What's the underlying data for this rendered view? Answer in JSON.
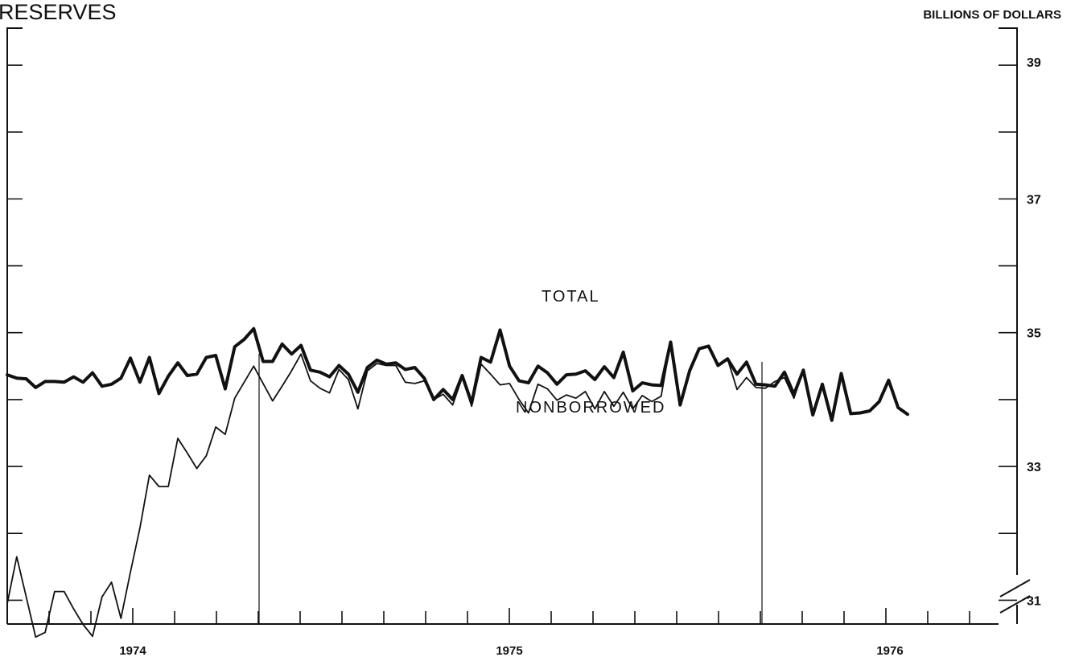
{
  "chart_data": {
    "type": "line",
    "title": "RESERVES",
    "ylabel": "BILLIONS OF DOLLARS",
    "ylim": [
      30,
      39
    ],
    "y_ticks": [
      31,
      33,
      35,
      37,
      39
    ],
    "y_tick_labels": [
      "31",
      "33",
      "35",
      "37",
      "39"
    ],
    "x_labels": [
      "1974",
      "1975",
      "1976"
    ],
    "grid": false,
    "axis_break": true,
    "series": [
      {
        "name": "TOTAL",
        "values": [
          34.37,
          34.32,
          34.31,
          34.18,
          34.27,
          34.27,
          34.26,
          34.34,
          34.26,
          34.4,
          34.2,
          34.23,
          34.32,
          34.62,
          34.26,
          34.63,
          34.09,
          34.35,
          34.55,
          34.36,
          34.38,
          34.63,
          34.66,
          34.16,
          34.79,
          34.9,
          35.06,
          34.57,
          34.57,
          34.83,
          34.68,
          34.81,
          34.44,
          34.41,
          34.34,
          34.51,
          34.38,
          34.11,
          34.48,
          34.59,
          34.53,
          34.55,
          34.45,
          34.48,
          34.32,
          34.0,
          34.15,
          34.0,
          34.36,
          33.95,
          34.63,
          34.56,
          35.04,
          34.5,
          34.28,
          34.25,
          34.5,
          34.4,
          34.23,
          34.37,
          34.38,
          34.43,
          34.3,
          34.49,
          34.33,
          34.71,
          34.13,
          34.25,
          34.22,
          34.21,
          34.86,
          33.92,
          34.43,
          34.76,
          34.8,
          34.51,
          34.61,
          34.38,
          34.56,
          34.23,
          34.22,
          34.2,
          34.41,
          34.08,
          34.44,
          33.77,
          34.23,
          33.69,
          34.39,
          33.79,
          33.8,
          33.83,
          33.97,
          34.29,
          33.88,
          33.78
        ]
      },
      {
        "name": "NONBORROWED",
        "values": [
          30.95,
          31.65,
          31.05,
          30.45,
          30.52,
          31.13,
          31.13,
          30.87,
          30.64,
          30.46,
          31.05,
          31.27,
          30.73,
          31.42,
          32.08,
          32.87,
          32.7,
          32.7,
          33.42,
          33.2,
          32.97,
          33.16,
          33.59,
          33.48,
          34.02,
          34.26,
          34.5,
          34.24,
          33.98,
          34.2,
          34.43,
          34.68,
          34.28,
          34.17,
          34.1,
          34.45,
          34.3,
          33.86,
          34.43,
          34.54,
          34.51,
          34.51,
          34.26,
          34.24,
          34.28,
          34.0,
          34.08,
          33.92,
          34.33,
          33.9,
          34.53,
          34.38,
          34.22,
          34.24,
          34.0,
          33.8,
          34.23,
          34.16,
          33.99,
          34.07,
          34.02,
          34.12,
          33.86,
          34.12,
          33.9,
          34.11,
          33.86,
          34.06,
          33.97,
          34.05,
          34.86,
          33.92,
          34.43,
          34.76,
          34.8,
          34.51,
          34.61,
          34.15,
          34.33,
          34.18,
          34.17,
          34.27,
          34.33,
          34.02,
          34.44,
          33.77,
          34.23,
          33.69,
          34.39,
          33.79,
          33.8,
          33.83,
          33.97,
          34.29,
          33.88,
          33.78
        ]
      }
    ]
  }
}
